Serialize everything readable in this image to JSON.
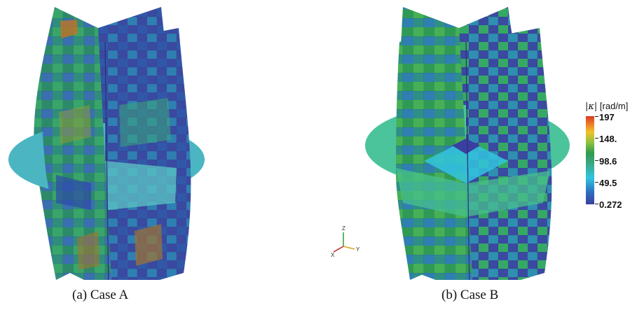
{
  "captions": {
    "case_a": "(a) Case A",
    "case_b": "(b) Case B"
  },
  "colorbar": {
    "title_symbol": "|κ|",
    "title_unit": "[rad/m]",
    "ticks": [
      "197",
      "148.",
      "98.6",
      "49.5",
      "0.272"
    ],
    "min": 0.272,
    "max": 197,
    "colormap": [
      "#3a3f9c",
      "#2e6fc0",
      "#31c5e0",
      "#3aa98a",
      "#2f9a4e",
      "#8cc23e",
      "#f0c22a",
      "#ef7d24",
      "#d63a26"
    ]
  },
  "axes_triad": {
    "z": "Z",
    "x": "X",
    "y": "Y"
  },
  "colors": {
    "disk_a": "#4bb6c2",
    "disk_b": "#4cc49b",
    "dark_blue": "#3a3d98",
    "green": "#2f9a56"
  }
}
